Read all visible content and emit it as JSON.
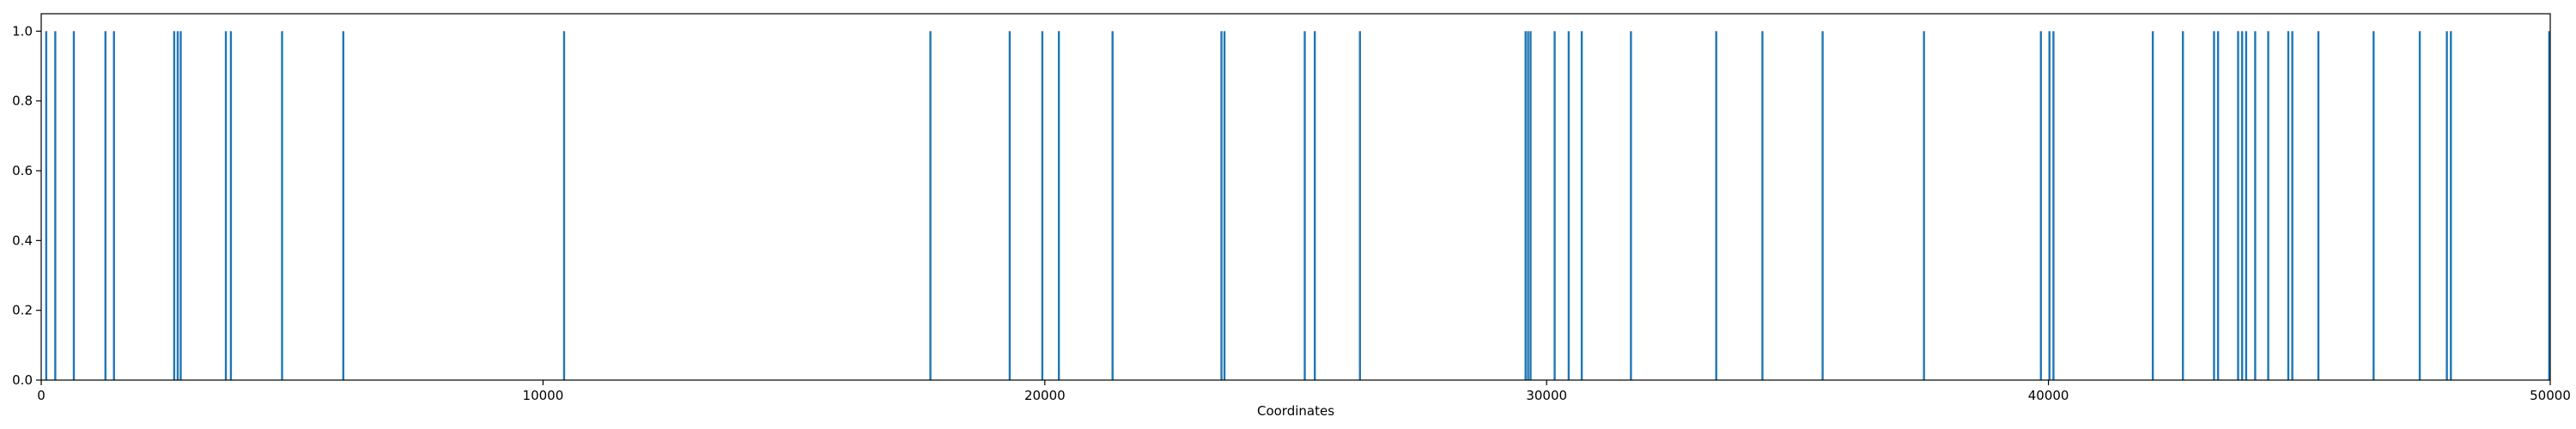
{
  "chart_data": {
    "type": "bar",
    "title": "",
    "xlabel": "Coordinates",
    "ylabel": "",
    "xlim": [
      0,
      50000
    ],
    "ylim": [
      0,
      1.05
    ],
    "grid": false,
    "bar_color": "#1f77b4",
    "x_ticks": [
      0,
      10000,
      20000,
      30000,
      40000,
      50000
    ],
    "y_ticks": [
      0.0,
      0.2,
      0.4,
      0.6,
      0.8,
      1.0
    ],
    "x_tick_labels": [
      "0",
      "10000",
      "20000",
      "30000",
      "40000",
      "50000"
    ],
    "y_tick_labels": [
      "0.0",
      "0.2",
      "0.4",
      "0.6",
      "0.8",
      "1.0"
    ],
    "x": [
      100,
      280,
      650,
      1280,
      1450,
      2650,
      2720,
      2780,
      3680,
      3780,
      4800,
      6020,
      10420,
      17720,
      19300,
      19950,
      20280,
      21350,
      23520,
      23580,
      25180,
      25380,
      26280,
      29580,
      29630,
      29680,
      30160,
      30440,
      30700,
      31680,
      33380,
      34300,
      35500,
      37520,
      39850,
      40020,
      40100,
      42080,
      42680,
      43300,
      43380,
      43780,
      43860,
      43940,
      44120,
      44380,
      44780,
      44860,
      45380,
      46480,
      47400,
      47940,
      48020,
      50000
    ],
    "values": [
      1,
      1,
      1,
      1,
      1,
      1,
      1,
      1,
      1,
      1,
      1,
      1,
      1,
      1,
      1,
      1,
      1,
      1,
      1,
      1,
      1,
      1,
      1,
      1,
      1,
      1,
      1,
      1,
      1,
      1,
      1,
      1,
      1,
      1,
      1,
      1,
      1,
      1,
      1,
      1,
      1,
      1,
      1,
      1,
      1,
      1,
      1,
      1,
      1,
      1,
      1,
      1,
      1,
      1
    ]
  }
}
